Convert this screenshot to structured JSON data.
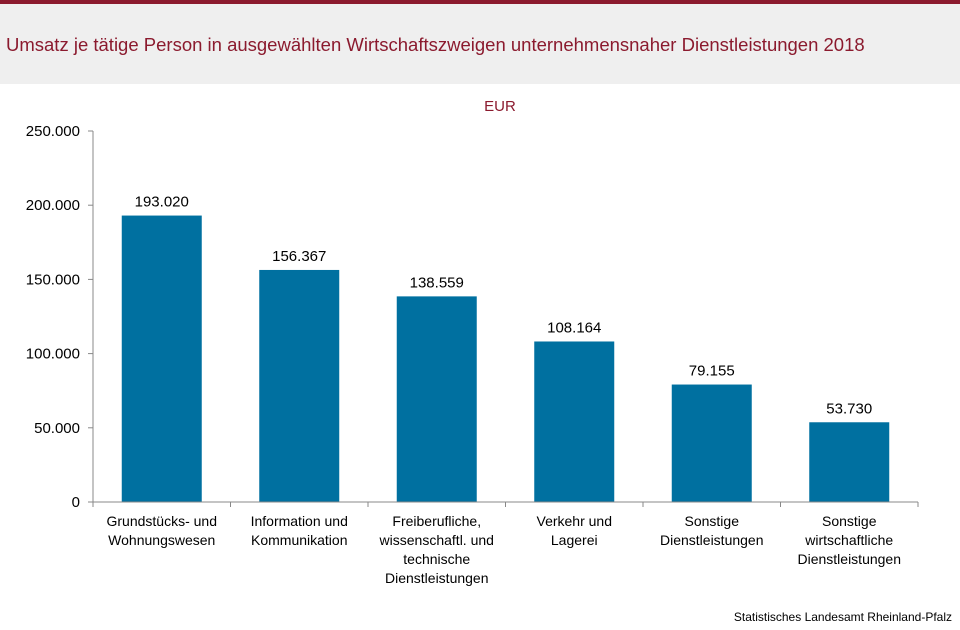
{
  "header": {
    "title": "Umsatz je tätige Person in ausgewählten Wirtschaftszweigen unternehmensnaher Dienstleistungen 2018"
  },
  "colors": {
    "accent": "#8b1a2e",
    "bar": "#0070a0",
    "header_bg": "#efefef"
  },
  "footer": {
    "source": "Statistisches Landesamt Rheinland-Pfalz"
  },
  "chart_data": {
    "type": "bar",
    "unit": "EUR",
    "categories": [
      [
        "Grundstücks- und",
        "Wohnungswesen"
      ],
      [
        "Information und",
        "Kommunikation"
      ],
      [
        "Freiberufliche,",
        "wissenschaftl. und",
        "technische",
        "Dienstleistungen"
      ],
      [
        "Verkehr und",
        "Lagerei"
      ],
      [
        "Sonstige",
        "Dienstleistungen"
      ],
      [
        "Sonstige",
        "wirtschaftliche",
        "Dienstleistungen"
      ]
    ],
    "values": [
      193020,
      156367,
      138559,
      108164,
      79155,
      53730
    ],
    "value_labels": [
      "193.020",
      "156.367",
      "138.559",
      "108.164",
      "79.155",
      "53.730"
    ],
    "ylim": [
      0,
      250000
    ],
    "yticks": [
      0,
      50000,
      100000,
      150000,
      200000,
      250000
    ],
    "ytick_labels": [
      "0",
      "50.000",
      "100.000",
      "150.000",
      "200.000",
      "250.000"
    ],
    "grid": false,
    "legend": "none"
  }
}
